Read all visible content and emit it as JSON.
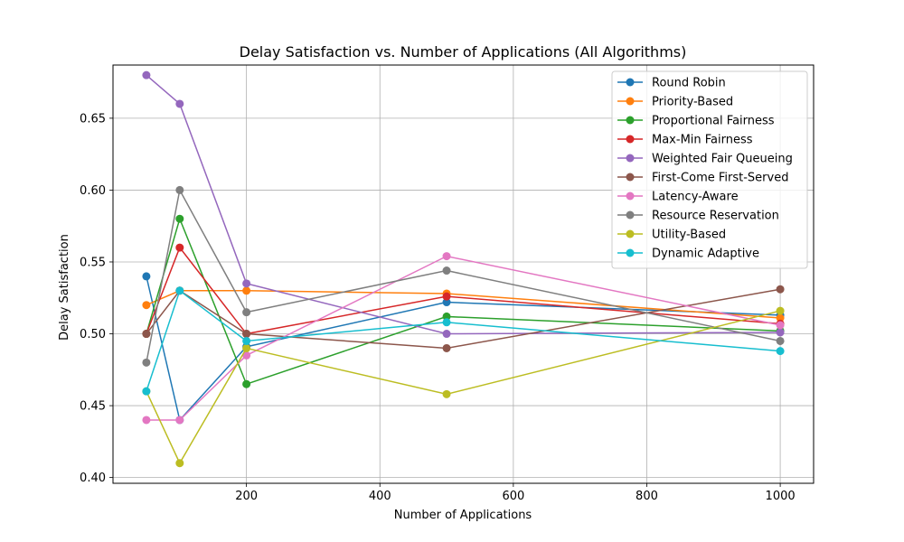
{
  "chart_data": {
    "type": "line",
    "title": "Delay Satisfaction vs. Number of Applications (All Algorithms)",
    "xlabel": "Number of Applications",
    "ylabel": "Delay Satisfaction",
    "x": [
      50,
      100,
      200,
      500,
      1000
    ],
    "xlim": [
      0,
      1050
    ],
    "ylim": [
      0.396,
      0.687
    ],
    "xticks": [
      200,
      400,
      600,
      800,
      1000
    ],
    "yticks": [
      0.4,
      0.45,
      0.5,
      0.55,
      0.6,
      0.65
    ],
    "ytick_labels": [
      "0.40",
      "0.45",
      "0.50",
      "0.55",
      "0.60",
      "0.65"
    ],
    "grid": true,
    "legend_position": "top-right",
    "series": [
      {
        "name": "Round Robin",
        "color": "#1f77b4",
        "values": [
          0.54,
          0.44,
          0.491,
          0.522,
          0.513
        ]
      },
      {
        "name": "Priority-Based",
        "color": "#ff7f0e",
        "values": [
          0.52,
          0.53,
          0.53,
          0.528,
          0.511
        ]
      },
      {
        "name": "Proportional Fairness",
        "color": "#2ca02c",
        "values": [
          0.5,
          0.58,
          0.465,
          0.512,
          0.502
        ]
      },
      {
        "name": "Max-Min Fairness",
        "color": "#d62728",
        "values": [
          0.5,
          0.56,
          0.5,
          0.526,
          0.507
        ]
      },
      {
        "name": "Weighted Fair Queueing",
        "color": "#9467bd",
        "values": [
          0.68,
          0.66,
          0.535,
          0.5,
          0.501
        ]
      },
      {
        "name": "First-Come First-Served",
        "color": "#8c564b",
        "values": [
          0.5,
          0.53,
          0.5,
          0.49,
          0.531
        ]
      },
      {
        "name": "Latency-Aware",
        "color": "#e377c2",
        "values": [
          0.44,
          0.44,
          0.485,
          0.554,
          0.506
        ]
      },
      {
        "name": "Resource Reservation",
        "color": "#7f7f7f",
        "values": [
          0.48,
          0.6,
          0.515,
          0.544,
          0.495
        ]
      },
      {
        "name": "Utility-Based",
        "color": "#bcbd22",
        "values": [
          0.46,
          0.41,
          0.49,
          0.458,
          0.516
        ]
      },
      {
        "name": "Dynamic Adaptive",
        "color": "#17becf",
        "values": [
          0.46,
          0.53,
          0.495,
          0.508,
          0.488
        ]
      }
    ]
  }
}
